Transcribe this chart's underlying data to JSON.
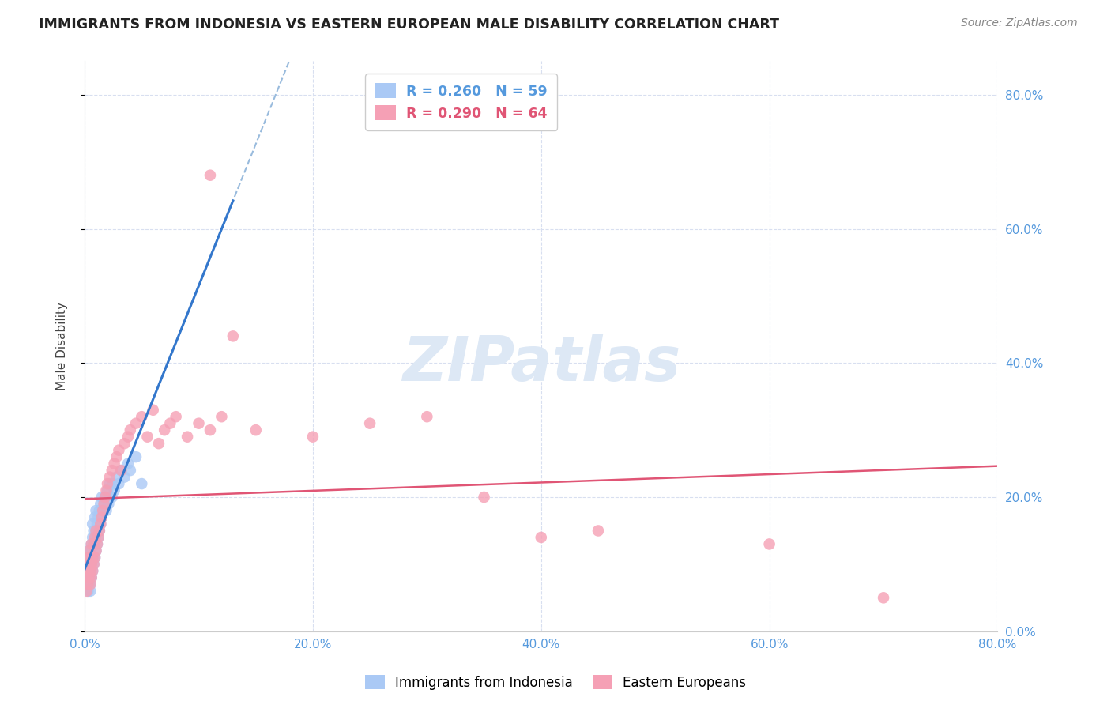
{
  "title": "IMMIGRANTS FROM INDONESIA VS EASTERN EUROPEAN MALE DISABILITY CORRELATION CHART",
  "source": "Source: ZipAtlas.com",
  "ylabel": "Male Disability",
  "xlim": [
    0.0,
    0.8
  ],
  "ylim": [
    0.0,
    0.85
  ],
  "watermark": "ZIPatlas",
  "legend_line1": "R = 0.260   N = 59",
  "legend_line2": "R = 0.290   N = 64",
  "series1_name": "Immigrants from Indonesia",
  "series2_name": "Eastern Europeans",
  "series1_color": "#aac9f5",
  "series2_color": "#f5a0b5",
  "series1_line_color": "#3377cc",
  "series2_line_color": "#e05575",
  "trendline1_color": "#99bbdd",
  "background_color": "#ffffff",
  "grid_color": "#d8dff0",
  "title_color": "#222222",
  "axis_label_color": "#5599dd",
  "watermark_color": "#dde8f5",
  "indonesia_x": [
    0.002,
    0.002,
    0.003,
    0.003,
    0.003,
    0.004,
    0.004,
    0.004,
    0.004,
    0.005,
    0.005,
    0.005,
    0.005,
    0.005,
    0.005,
    0.006,
    0.006,
    0.006,
    0.007,
    0.007,
    0.007,
    0.007,
    0.008,
    0.008,
    0.008,
    0.009,
    0.009,
    0.009,
    0.01,
    0.01,
    0.01,
    0.011,
    0.011,
    0.012,
    0.012,
    0.013,
    0.013,
    0.014,
    0.014,
    0.015,
    0.015,
    0.016,
    0.017,
    0.018,
    0.019,
    0.02,
    0.021,
    0.022,
    0.024,
    0.025,
    0.026,
    0.028,
    0.03,
    0.032,
    0.035,
    0.038,
    0.04,
    0.045,
    0.05
  ],
  "indonesia_y": [
    0.08,
    0.1,
    0.06,
    0.09,
    0.12,
    0.07,
    0.08,
    0.1,
    0.11,
    0.06,
    0.07,
    0.08,
    0.09,
    0.1,
    0.12,
    0.08,
    0.1,
    0.13,
    0.09,
    0.11,
    0.14,
    0.16,
    0.1,
    0.13,
    0.15,
    0.11,
    0.14,
    0.17,
    0.12,
    0.15,
    0.18,
    0.13,
    0.16,
    0.14,
    0.17,
    0.15,
    0.18,
    0.16,
    0.19,
    0.17,
    0.2,
    0.18,
    0.19,
    0.2,
    0.18,
    0.21,
    0.19,
    0.22,
    0.2,
    0.22,
    0.21,
    0.23,
    0.22,
    0.24,
    0.23,
    0.25,
    0.24,
    0.26,
    0.22
  ],
  "eastern_x": [
    0.002,
    0.002,
    0.002,
    0.003,
    0.003,
    0.003,
    0.004,
    0.004,
    0.004,
    0.005,
    0.005,
    0.005,
    0.006,
    0.006,
    0.006,
    0.007,
    0.007,
    0.008,
    0.008,
    0.009,
    0.009,
    0.01,
    0.01,
    0.011,
    0.012,
    0.013,
    0.014,
    0.015,
    0.016,
    0.017,
    0.018,
    0.019,
    0.02,
    0.022,
    0.024,
    0.026,
    0.028,
    0.03,
    0.032,
    0.035,
    0.038,
    0.04,
    0.045,
    0.05,
    0.055,
    0.06,
    0.065,
    0.07,
    0.075,
    0.08,
    0.09,
    0.1,
    0.11,
    0.12,
    0.13,
    0.15,
    0.2,
    0.25,
    0.3,
    0.35,
    0.4,
    0.45,
    0.6,
    0.7
  ],
  "eastern_y": [
    0.06,
    0.08,
    0.1,
    0.07,
    0.09,
    0.11,
    0.08,
    0.1,
    0.12,
    0.07,
    0.09,
    0.11,
    0.08,
    0.1,
    0.13,
    0.09,
    0.11,
    0.1,
    0.13,
    0.11,
    0.14,
    0.12,
    0.15,
    0.13,
    0.14,
    0.15,
    0.16,
    0.17,
    0.18,
    0.19,
    0.2,
    0.21,
    0.22,
    0.23,
    0.24,
    0.25,
    0.26,
    0.27,
    0.24,
    0.28,
    0.29,
    0.3,
    0.31,
    0.32,
    0.29,
    0.33,
    0.28,
    0.3,
    0.31,
    0.32,
    0.29,
    0.31,
    0.3,
    0.32,
    0.44,
    0.3,
    0.29,
    0.31,
    0.32,
    0.2,
    0.14,
    0.15,
    0.13,
    0.05
  ],
  "eastern_outlier_x": [
    0.11
  ],
  "eastern_outlier_y": [
    0.68
  ]
}
